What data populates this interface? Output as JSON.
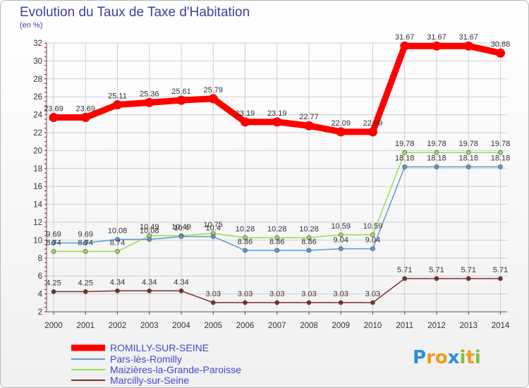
{
  "title": "Evolution du Taux de Taxe d'Habitation",
  "unit": "(en %)",
  "logo": "Proxiti",
  "colors": {
    "background": "#ffffff",
    "grid": "#cccccc",
    "title": "#3f3fa0"
  },
  "chart_data": {
    "type": "line",
    "x": [
      "2000",
      "2001",
      "2002",
      "2003",
      "2004",
      "2005",
      "2006",
      "2007",
      "2008",
      "2009",
      "2010",
      "2011",
      "2012",
      "2013",
      "2014"
    ],
    "ylim": [
      2,
      32
    ],
    "yticks": [
      2,
      4,
      6,
      8,
      10,
      12,
      14,
      16,
      18,
      20,
      22,
      24,
      26,
      28,
      30,
      32
    ],
    "grid": true,
    "legend_position": "bottom-left",
    "series": [
      {
        "name": "ROMILLY-SUR-SEINE",
        "color": "#ff0000",
        "values": [
          23.69,
          23.69,
          25.11,
          25.36,
          25.61,
          25.79,
          23.19,
          23.19,
          22.77,
          22.09,
          22.09,
          31.67,
          31.67,
          31.67,
          30.88
        ],
        "labels": [
          "23.69",
          "23.69",
          "25.11",
          "25.36",
          "25.61",
          "25.79",
          "23.19",
          "23.19",
          "22.77",
          "22.09",
          "22.09",
          "31.67",
          "31.67",
          "31.67",
          "30.88"
        ]
      },
      {
        "name": "Pars-lès-Romilly",
        "color": "#5b9bd5",
        "values": [
          9.69,
          9.69,
          10.08,
          10.08,
          10.4,
          10.4,
          8.86,
          8.86,
          8.86,
          9.04,
          9.04,
          18.18,
          18.18,
          18.18,
          18.18
        ],
        "labels": [
          "9.69",
          "9.69",
          "10.08",
          "10.08",
          "10.4",
          "10.4",
          "8.86",
          "8.86",
          "8.86",
          "9.04",
          "9.04",
          "18.18",
          "18.18",
          "18.18",
          "18.18"
        ]
      },
      {
        "name": "Maizières-la-Grande-Paroisse",
        "color": "#99dd55",
        "values": [
          8.74,
          8.74,
          8.74,
          10.49,
          10.49,
          10.75,
          10.28,
          10.28,
          10.28,
          10.59,
          10.59,
          19.78,
          19.78,
          19.78,
          19.78
        ],
        "labels": [
          "8.74",
          "8.74",
          "8.74",
          "10.49",
          "10.49",
          "10.75",
          "10.28",
          "10.28",
          "10.28",
          "10.59",
          "10.59",
          "19.78",
          "19.78",
          "19.78",
          "19.78"
        ]
      },
      {
        "name": "Marcilly-sur-Seine",
        "color": "#7a2e2e",
        "values": [
          4.25,
          4.25,
          4.34,
          4.34,
          4.34,
          3.03,
          3.03,
          3.03,
          3.03,
          3.03,
          3.03,
          5.71,
          5.71,
          5.71,
          5.71
        ],
        "labels": [
          "4.25",
          "4.25",
          "4.34",
          "4.34",
          "4.34",
          "3.03",
          "3.03",
          "3.03",
          "3.03",
          "3.03",
          "3.03",
          "5.71",
          "5.71",
          "5.71",
          "5.71"
        ]
      }
    ]
  }
}
